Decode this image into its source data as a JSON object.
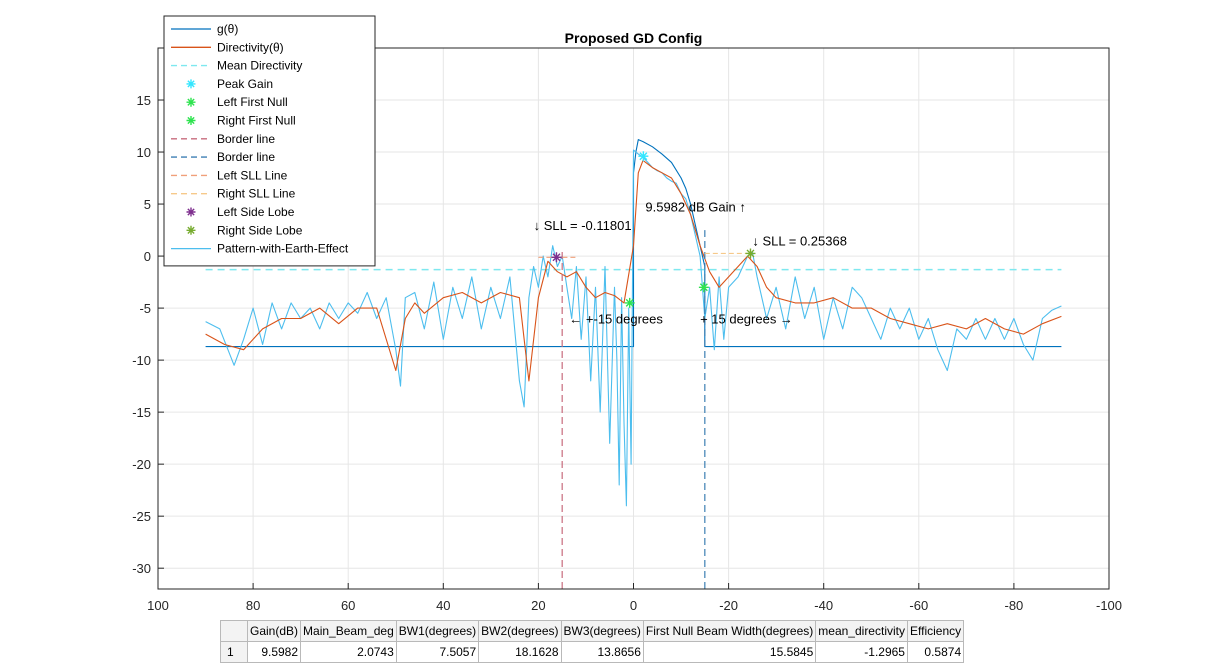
{
  "chart_data": {
    "type": "line",
    "title": "Proposed GD Config",
    "xlabel": "",
    "ylabel": "",
    "xlim": [
      100,
      -100
    ],
    "ylim": [
      -32,
      20
    ],
    "xticks": [
      100,
      80,
      60,
      40,
      20,
      0,
      -20,
      -40,
      -60,
      -80,
      -100
    ],
    "xtick_labels": [
      "100",
      "80",
      "60",
      "40",
      "20",
      "0",
      "-20",
      "-40",
      "-60",
      "-80",
      "-100"
    ],
    "yticks": [
      15,
      10,
      5,
      0,
      -5,
      -10,
      -15,
      -20,
      -25,
      -30
    ],
    "ytick_labels": [
      "15",
      "10",
      "5",
      "0",
      "-5",
      "-10",
      "-15",
      "-20",
      "-25",
      "-30"
    ],
    "grid": true,
    "legend_position": "top-left",
    "legend": [
      {
        "label": "g(θ)",
        "color": "#0072bd",
        "style": "line"
      },
      {
        "label": "Directivity(θ)",
        "color": "#d95319",
        "style": "line"
      },
      {
        "label": "Mean Directivity",
        "color": "#7ee8ef",
        "style": "dashed"
      },
      {
        "label": "Peak Gain",
        "color": "#33e6ff",
        "style": "star"
      },
      {
        "label": "Left First Null",
        "color": "#2ee34f",
        "style": "star"
      },
      {
        "label": "Right First Null",
        "color": "#2ee34f",
        "style": "star"
      },
      {
        "label": "Border line",
        "color": "#c76b7c",
        "style": "dashed"
      },
      {
        "label": "Border line",
        "color": "#3d7fb3",
        "style": "dashed"
      },
      {
        "label": "Left SLL Line",
        "color": "#f0a07a",
        "style": "dashed"
      },
      {
        "label": "Right SLL Line",
        "color": "#f6c98a",
        "style": "dashed"
      },
      {
        "label": "Left Side Lobe",
        "color": "#7e2f8e",
        "style": "star"
      },
      {
        "label": "Right Side Lobe",
        "color": "#77ac30",
        "style": "star"
      },
      {
        "label": "Pattern-with-Earth-Effect",
        "color": "#4dbeee",
        "style": "line"
      }
    ],
    "series": [
      {
        "name": "g(θ)",
        "color": "#0072bd",
        "x": [
          90,
          15,
          15,
          0,
          0,
          -0.5,
          -1,
          -2,
          -4,
          -6,
          -8,
          -10,
          -11,
          -12,
          -13,
          -14,
          -15,
          -15,
          -90
        ],
        "y": [
          -8.7,
          -8.7,
          -8.7,
          -8.7,
          8,
          10,
          11.2,
          11,
          10.5,
          9.8,
          9,
          7.5,
          6.5,
          5,
          3,
          1,
          -1,
          -8.7,
          -8.7
        ]
      },
      {
        "name": "Directivity(θ)",
        "color": "#d95319",
        "x": [
          90,
          86,
          82,
          78,
          74,
          70,
          66,
          62,
          58,
          54,
          50,
          48,
          46,
          44,
          40,
          36,
          32,
          28,
          24,
          22,
          20,
          18,
          16,
          14,
          12,
          10,
          8,
          6,
          4,
          2,
          0,
          -1,
          -2,
          -4,
          -6,
          -8,
          -10,
          -12,
          -14,
          -16,
          -18,
          -20,
          -22,
          -24,
          -26,
          -28,
          -30,
          -34,
          -38,
          -42,
          -46,
          -50,
          -54,
          -58,
          -62,
          -66,
          -70,
          -74,
          -78,
          -82,
          -86,
          -90
        ],
        "y": [
          -7.5,
          -8.5,
          -9,
          -7,
          -6,
          -6,
          -5,
          -6.5,
          -5,
          -5,
          -11,
          -6,
          -4.5,
          -5.5,
          -4,
          -3.5,
          -4.5,
          -3.5,
          -4,
          -12,
          -4,
          -0.5,
          -1.5,
          -2,
          -1.5,
          -3,
          -4,
          -3.5,
          -3.8,
          -4.5,
          1,
          8,
          9.2,
          8.5,
          8,
          7.5,
          6,
          4,
          1,
          -1.5,
          -3,
          -2,
          -1,
          0,
          -1,
          -3,
          -4,
          -4.5,
          -4.5,
          -4,
          -5,
          -5,
          -6,
          -6.5,
          -7,
          -6.5,
          -7,
          -6,
          -7,
          -7.5,
          -6.5,
          -5.8
        ]
      },
      {
        "name": "Mean Directivity",
        "color": "#7ee8ef",
        "x": [
          90,
          -90
        ],
        "y": [
          -1.2965,
          -1.2965
        ]
      },
      {
        "name": "Pattern-with-Earth-Effect",
        "color": "#4dbeee",
        "x": [
          90,
          87,
          84,
          82,
          80,
          78,
          76,
          74,
          72,
          70,
          68,
          66,
          64,
          62,
          60,
          58,
          56,
          54,
          52,
          50,
          49,
          48,
          46,
          44,
          42,
          40,
          38,
          36,
          34,
          32,
          30,
          28,
          26,
          24,
          23,
          22,
          21,
          20,
          19,
          18,
          17,
          16,
          15,
          14,
          13,
          12,
          11,
          10,
          9,
          8,
          7,
          6,
          5,
          4,
          3.5,
          3,
          2.5,
          2,
          1.5,
          1,
          0.5,
          0,
          -1,
          -2,
          -3,
          -4,
          -5,
          -6,
          -7,
          -8,
          -9,
          -10,
          -11,
          -12,
          -13,
          -14,
          -15,
          -16,
          -17,
          -18,
          -19,
          -20,
          -22,
          -24,
          -25,
          -26,
          -28,
          -30,
          -32,
          -34,
          -36,
          -38,
          -40,
          -42,
          -44,
          -46,
          -48,
          -50,
          -52,
          -54,
          -56,
          -58,
          -60,
          -62,
          -64,
          -66,
          -68,
          -70,
          -72,
          -74,
          -76,
          -78,
          -80,
          -82,
          -84,
          -86,
          -88,
          -90
        ],
        "y": [
          -6.3,
          -7,
          -10.5,
          -8,
          -5,
          -8.5,
          -4.5,
          -7,
          -4.5,
          -6,
          -5,
          -7,
          -4.5,
          -6,
          -4.5,
          -5.5,
          -3.5,
          -6,
          -4,
          -9,
          -12.5,
          -4,
          -3.5,
          -7,
          -2.5,
          -8,
          -3,
          -6,
          -2,
          -7,
          -3,
          -6,
          -2,
          -12,
          -14.5,
          -4,
          -1,
          -3,
          0,
          -2,
          1,
          -1,
          0,
          -3,
          -6,
          -1,
          -8,
          -2,
          -12,
          -3,
          -15,
          -1,
          -18,
          -3,
          -10,
          -22,
          -4,
          -16,
          -24,
          -5,
          -20,
          10.2,
          9.8,
          9.5,
          9,
          8.5,
          8.2,
          8,
          7.5,
          7.2,
          7,
          6,
          5.5,
          4,
          2,
          0,
          -6,
          -3,
          -9,
          -2,
          -8,
          -3,
          -2,
          0,
          0.4,
          -2,
          -6,
          -3,
          -7,
          -2,
          -6,
          -3,
          -8,
          -4,
          -7,
          -3,
          -4,
          -6,
          -8,
          -5,
          -7,
          -5,
          -8,
          -6,
          -9,
          -11,
          -7,
          -8,
          -6,
          -8,
          -6,
          -8,
          -6,
          -8.5,
          -10,
          -6,
          -5.2,
          -4.8
        ]
      }
    ],
    "markers": [
      {
        "name": "Peak Gain",
        "x": -2.0743,
        "y": 9.5982,
        "color": "#33e6ff"
      },
      {
        "name": "Left First Null",
        "x": 0.8,
        "y": -4.5,
        "color": "#2ee34f"
      },
      {
        "name": "Right First Null",
        "x": -14.8,
        "y": -3,
        "color": "#2ee34f"
      },
      {
        "name": "Left Side Lobe",
        "x": 16.2,
        "y": -0.11801,
        "color": "#7e2f8e"
      },
      {
        "name": "Right Side Lobe",
        "x": -24.6,
        "y": 0.25368,
        "color": "#77ac30"
      }
    ],
    "vlines": [
      {
        "name": "Border line",
        "x": 15,
        "y_from": -32,
        "y_to": 0.5,
        "color": "#c76b7c"
      },
      {
        "name": "Border line",
        "x": -15,
        "y_from": -32,
        "y_to": 2.5,
        "color": "#3d7fb3"
      }
    ],
    "hlines": [
      {
        "name": "Left SLL Line",
        "y": -0.11801,
        "x_from": 20,
        "x_to": 12,
        "color": "#f0a07a"
      },
      {
        "name": "Right SLL Line",
        "y": 0.25368,
        "x_from": -15,
        "x_to": -25,
        "color": "#f6c98a"
      }
    ],
    "annotations": [
      {
        "id": "left-sll",
        "text": "↓ SLL = -0.11801",
        "x": 21,
        "y": 2.5
      },
      {
        "id": "right-sll",
        "text": "↓ SLL = 0.25368",
        "x": -25,
        "y": 1
      },
      {
        "id": "gain",
        "text": "9.5982 dB Gain ↑",
        "x": -2.5,
        "y": 4.3
      },
      {
        "id": "left-deg",
        "text": "← +-15 degrees",
        "x": 13.5,
        "y": -6.5
      },
      {
        "id": "right-deg",
        "text": "+ 15 degrees  →",
        "x": -14,
        "y": -6.5
      }
    ]
  },
  "table": {
    "headers": [
      "Gain(dB)",
      "Main_Beam_deg",
      "BW1(degrees)",
      "BW2(degrees)",
      "BW3(degrees)",
      "First Null Beam Width(degrees)",
      "mean_directivity",
      "Efficiency"
    ],
    "rows": [
      {
        "index": "1",
        "cells": [
          "9.5982",
          "2.0743",
          "7.5057",
          "18.1628",
          "13.8656",
          "15.5845",
          "-1.2965",
          "0.5874"
        ]
      }
    ]
  }
}
